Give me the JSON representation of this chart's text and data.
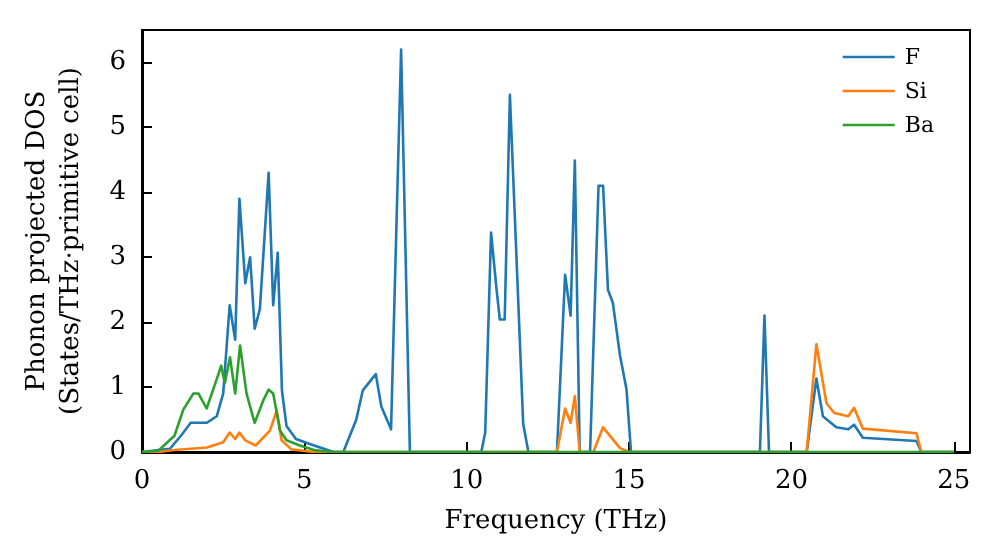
{
  "chart_data": {
    "type": "line",
    "xlabel": "Frequency (THz)",
    "ylabel": "Phonon projected DOS\n(States/THz·primitive cell)",
    "xlim": [
      0,
      25.5
    ],
    "xticks": [
      0,
      5,
      10,
      15,
      20,
      25
    ],
    "ylim": [
      0,
      6.5
    ],
    "yticks": [
      0,
      1,
      2,
      3,
      4,
      5,
      6
    ],
    "grid": false,
    "legend": "top right",
    "marker": "none",
    "line_style": "solid",
    "series": [
      {
        "name": "F",
        "color": "#1f77b4",
        "x": [
          0,
          0.86,
          1.2,
          1.5,
          2.0,
          2.3,
          2.5,
          2.7,
          2.87,
          3.0,
          3.18,
          3.33,
          3.47,
          3.63,
          3.9,
          4.04,
          4.18,
          4.31,
          4.45,
          4.74,
          5.3,
          5.9,
          6.2,
          6.6,
          6.8,
          7.2,
          7.37,
          7.67,
          7.98,
          8.25,
          10.45,
          10.57,
          10.75,
          10.92,
          11.02,
          11.17,
          11.33,
          11.74,
          11.9,
          12.78,
          13.03,
          13.2,
          13.33,
          13.48,
          13.8,
          14.06,
          14.2,
          14.35,
          14.5,
          14.72,
          14.92,
          15.06,
          19.03,
          19.17,
          19.31,
          20.47,
          20.77,
          20.97,
          21.38,
          21.75,
          21.93,
          22.2,
          23.85,
          24.0,
          25
        ],
        "values": [
          0,
          0.05,
          0.25,
          0.45,
          0.45,
          0.55,
          0.9,
          2.26,
          1.73,
          3.9,
          2.6,
          3.0,
          1.9,
          2.2,
          4.3,
          2.26,
          3.07,
          0.95,
          0.4,
          0.2,
          0.1,
          0,
          0,
          0.5,
          0.95,
          1.2,
          0.7,
          0.35,
          6.2,
          0,
          0,
          0.3,
          3.38,
          2.5,
          2.04,
          2.04,
          5.5,
          0.43,
          0,
          0,
          2.73,
          2.1,
          4.49,
          0,
          0,
          4.1,
          4.1,
          2.5,
          2.3,
          1.49,
          0.97,
          0,
          0,
          2.1,
          0,
          0,
          1.13,
          0.55,
          0.38,
          0.35,
          0.42,
          0.22,
          0.17,
          0,
          0
        ]
      },
      {
        "name": "Si",
        "color": "#ff7f0e",
        "x": [
          0,
          0.5,
          1.0,
          2.0,
          2.5,
          2.7,
          2.87,
          3.0,
          3.18,
          3.5,
          3.94,
          4.15,
          4.3,
          4.6,
          5.3,
          12.78,
          13.03,
          13.2,
          13.33,
          13.48,
          13.9,
          14.2,
          14.72,
          15.0,
          20.47,
          20.77,
          21.08,
          21.32,
          21.75,
          21.93,
          22.2,
          23.85,
          24.0,
          25
        ],
        "values": [
          0,
          0,
          0.03,
          0.07,
          0.15,
          0.3,
          0.2,
          0.3,
          0.18,
          0.1,
          0.33,
          0.64,
          0.18,
          0.04,
          0,
          0,
          0.67,
          0.45,
          0.86,
          0,
          0,
          0.38,
          0.06,
          0,
          0,
          1.66,
          0.75,
          0.6,
          0.55,
          0.68,
          0.36,
          0.29,
          0,
          0
        ]
      },
      {
        "name": "Ba",
        "color": "#2ca02c",
        "x": [
          0,
          0.5,
          1.0,
          1.27,
          1.58,
          1.74,
          1.99,
          2.26,
          2.44,
          2.55,
          2.71,
          2.87,
          3.02,
          3.22,
          3.47,
          3.74,
          3.9,
          4.04,
          4.25,
          4.45,
          4.86,
          5.3,
          5.8,
          25
        ],
        "values": [
          0,
          0.02,
          0.25,
          0.65,
          0.9,
          0.9,
          0.67,
          1.06,
          1.33,
          1.06,
          1.46,
          0.9,
          1.64,
          0.9,
          0.45,
          0.8,
          0.96,
          0.9,
          0.33,
          0.18,
          0.1,
          0.03,
          0,
          0
        ]
      }
    ]
  }
}
